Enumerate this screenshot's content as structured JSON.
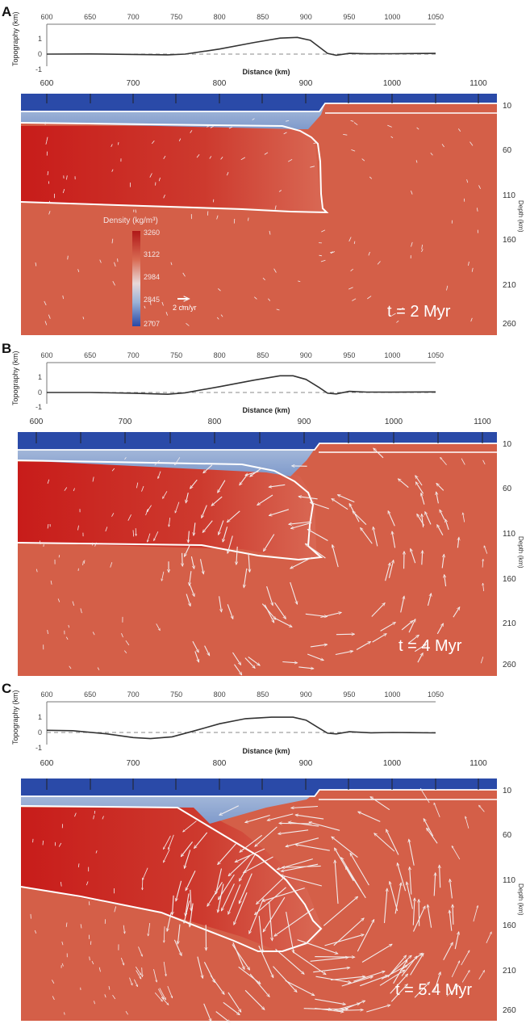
{
  "panels": [
    {
      "letter": "A",
      "time_label": "t = 2 Myr",
      "topography": {
        "ylabel": "Topography (km)",
        "xlabel": "Distance (km)",
        "x_ticks": [
          "600",
          "650",
          "700",
          "750",
          "800",
          "850",
          "900",
          "950",
          "1000",
          "1050"
        ],
        "y_ticks": [
          "1",
          "0",
          "-1"
        ],
        "x_range": [
          600,
          1050
        ],
        "y_range": [
          -1,
          1.5
        ],
        "profile": [
          [
            600,
            0
          ],
          [
            650,
            0.01
          ],
          [
            700,
            -0.02
          ],
          [
            740,
            -0.05
          ],
          [
            760,
            0
          ],
          [
            800,
            0.35
          ],
          [
            840,
            0.8
          ],
          [
            870,
            1.1
          ],
          [
            890,
            1.15
          ],
          [
            905,
            0.95
          ],
          [
            915,
            0.5
          ],
          [
            925,
            0.05
          ],
          [
            935,
            -0.08
          ],
          [
            950,
            0.05
          ],
          [
            970,
            0.02
          ],
          [
            1000,
            0.03
          ],
          [
            1050,
            0.05
          ]
        ]
      },
      "section": {
        "x_ticks": [
          "600",
          "700",
          "800",
          "900",
          "1000",
          "1100"
        ],
        "depth_label": "Depth (km)",
        "depth_ticks": [
          "10",
          "60",
          "110",
          "160",
          "210",
          "260"
        ]
      },
      "legend": {
        "title": "Density (kg/m³)",
        "ticks": [
          "3260",
          "3122",
          "2984",
          "2845",
          "2707"
        ],
        "velocity_label": "2 cm/yr"
      },
      "arrow_intensity": 1
    },
    {
      "letter": "B",
      "time_label": "t = 4 Myr",
      "topography": {
        "ylabel": "Topography (km)",
        "xlabel": "Distance (km)",
        "x_ticks": [
          "600",
          "650",
          "700",
          "750",
          "800",
          "850",
          "900",
          "950",
          "1000",
          "1050"
        ],
        "y_ticks": [
          "1",
          "0",
          "-1"
        ],
        "x_range": [
          600,
          1050
        ],
        "y_range": [
          -1,
          1.5
        ],
        "profile": [
          [
            600,
            0
          ],
          [
            650,
            0
          ],
          [
            700,
            -0.05
          ],
          [
            740,
            -0.12
          ],
          [
            760,
            -0.02
          ],
          [
            800,
            0.4
          ],
          [
            840,
            0.85
          ],
          [
            870,
            1.15
          ],
          [
            885,
            1.15
          ],
          [
            900,
            0.9
          ],
          [
            915,
            0.35
          ],
          [
            925,
            -0.05
          ],
          [
            935,
            -0.1
          ],
          [
            950,
            0.08
          ],
          [
            970,
            0.03
          ],
          [
            1000,
            0.02
          ],
          [
            1050,
            0.04
          ]
        ]
      },
      "section": {
        "x_ticks": [
          "600",
          "700",
          "800",
          "900",
          "1000",
          "1100"
        ],
        "depth_label": "Depth (km)",
        "depth_ticks": [
          "10",
          "60",
          "110",
          "160",
          "210",
          "260"
        ]
      },
      "arrow_intensity": 2
    },
    {
      "letter": "C",
      "time_label": "t = 5.4 Myr",
      "topography": {
        "ylabel": "Topography (km)",
        "xlabel": "Distance (km)",
        "x_ticks": [
          "600",
          "650",
          "700",
          "750",
          "800",
          "850",
          "900",
          "950",
          "1000",
          "1050"
        ],
        "y_ticks": [
          "1",
          "0",
          "-1"
        ],
        "x_range": [
          600,
          1050
        ],
        "y_range": [
          -1,
          1.5
        ],
        "profile": [
          [
            600,
            0.15
          ],
          [
            630,
            0.12
          ],
          [
            670,
            -0.1
          ],
          [
            700,
            -0.35
          ],
          [
            720,
            -0.42
          ],
          [
            745,
            -0.3
          ],
          [
            770,
            0.1
          ],
          [
            800,
            0.6
          ],
          [
            830,
            0.95
          ],
          [
            860,
            1.05
          ],
          [
            885,
            1.05
          ],
          [
            900,
            0.85
          ],
          [
            915,
            0.3
          ],
          [
            925,
            -0.05
          ],
          [
            935,
            -0.1
          ],
          [
            950,
            0.05
          ],
          [
            975,
            -0.02
          ],
          [
            1000,
            0
          ],
          [
            1050,
            -0.03
          ]
        ]
      },
      "section": {
        "x_ticks": [
          "600",
          "700",
          "800",
          "900",
          "1000",
          "1100"
        ],
        "depth_label": "Depth (km)",
        "depth_ticks": [
          "10",
          "60",
          "110",
          "160",
          "210",
          "260"
        ]
      },
      "arrow_intensity": 3
    }
  ],
  "colors": {
    "mantle": "#d45f48",
    "slab_core": "#c0201c",
    "water": "#2848a6",
    "crust": "#9ab2d6",
    "boundary": "#ffffff",
    "axis": "#555555"
  }
}
